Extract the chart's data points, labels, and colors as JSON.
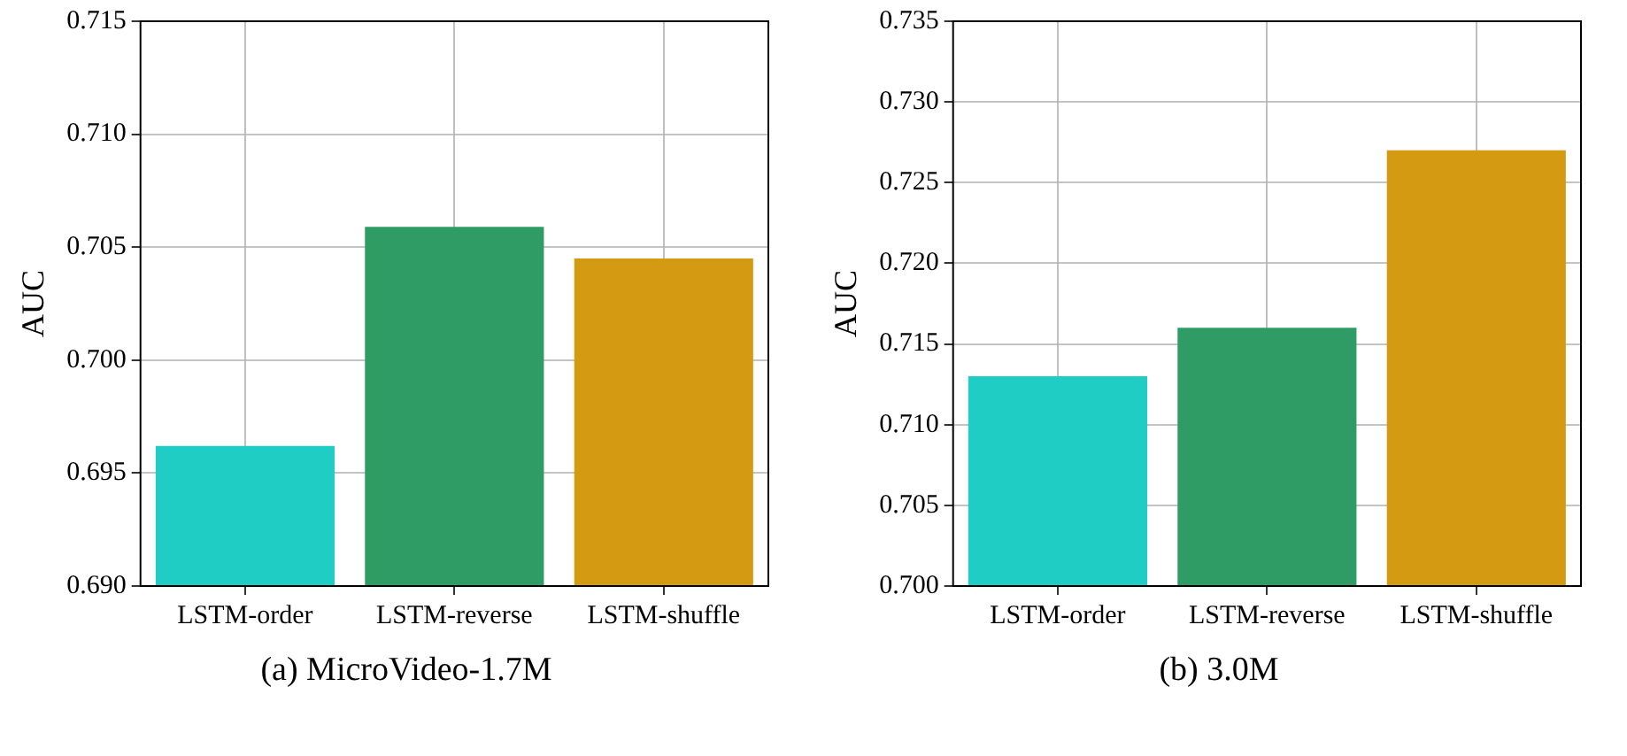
{
  "chart_data": [
    {
      "type": "bar",
      "ylabel": "AUC",
      "categories": [
        "LSTM-order",
        "LSTM-reverse",
        "LSTM-shuffle"
      ],
      "values": [
        0.6962,
        0.7059,
        0.7045
      ],
      "colors": [
        "#1fcdc4",
        "#2e9c64",
        "#d49b12"
      ],
      "ylim": [
        0.69,
        0.715
      ],
      "yticks": [
        {
          "value": 0.69,
          "label": "0.690"
        },
        {
          "value": 0.695,
          "label": "0.695"
        },
        {
          "value": 0.7,
          "label": "0.700"
        },
        {
          "value": 0.705,
          "label": "0.705"
        },
        {
          "value": 0.71,
          "label": "0.710"
        },
        {
          "value": 0.715,
          "label": "0.715"
        }
      ],
      "grid": true,
      "legend": false,
      "annotations": [
        "(a) MicroVideo-1.7M"
      ]
    },
    {
      "type": "bar",
      "ylabel": "AUC",
      "categories": [
        "LSTM-order",
        "LSTM-reverse",
        "LSTM-shuffle"
      ],
      "values": [
        0.713,
        0.716,
        0.727
      ],
      "colors": [
        "#1fcdc4",
        "#2e9c64",
        "#d49b12"
      ],
      "ylim": [
        0.7,
        0.735
      ],
      "yticks": [
        {
          "value": 0.7,
          "label": "0.700"
        },
        {
          "value": 0.705,
          "label": "0.705"
        },
        {
          "value": 0.71,
          "label": "0.710"
        },
        {
          "value": 0.715,
          "label": "0.715"
        },
        {
          "value": 0.72,
          "label": "0.720"
        },
        {
          "value": 0.725,
          "label": "0.725"
        },
        {
          "value": 0.73,
          "label": "0.730"
        },
        {
          "value": 0.735,
          "label": "0.735"
        }
      ],
      "grid": true,
      "legend": false,
      "annotations": [
        "(b) 3.0M"
      ]
    }
  ]
}
